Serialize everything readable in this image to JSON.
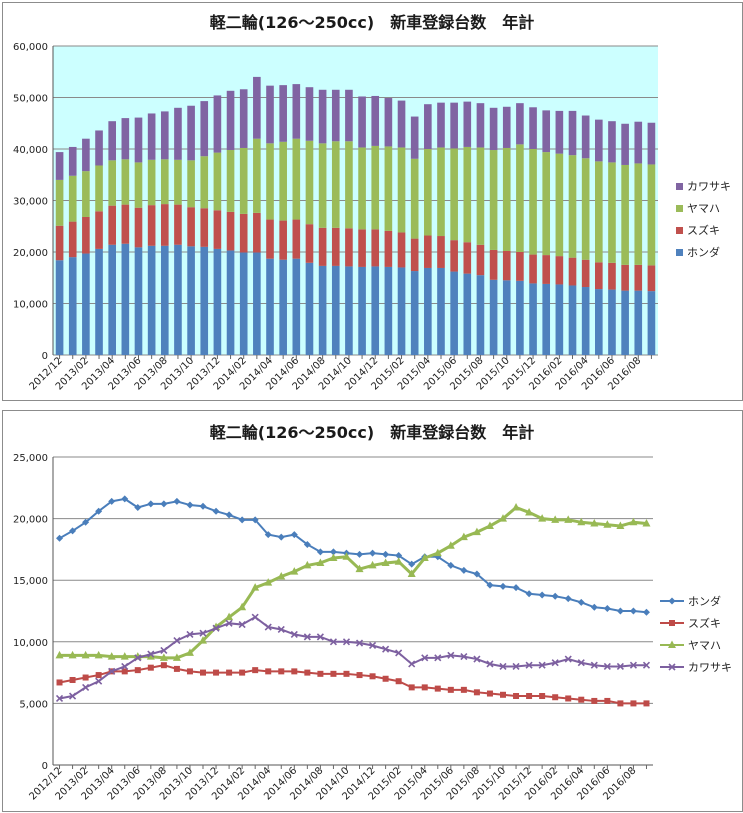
{
  "chart_data": [
    {
      "type": "bar",
      "stacked": true,
      "title": "軽二輪(126～250cc)　新車登録台数　年計",
      "categories": [
        "2012/12",
        "2013/01",
        "2013/02",
        "2013/03",
        "2013/04",
        "2013/05",
        "2013/06",
        "2013/07",
        "2013/08",
        "2013/09",
        "2013/10",
        "2013/11",
        "2013/12",
        "2014/01",
        "2014/02",
        "2014/03",
        "2014/04",
        "2014/05",
        "2014/06",
        "2014/07",
        "2014/08",
        "2014/09",
        "2014/10",
        "2014/11",
        "2014/12",
        "2015/01",
        "2015/02",
        "2015/03",
        "2015/04",
        "2015/05",
        "2015/06",
        "2015/07",
        "2015/08",
        "2015/09",
        "2015/10",
        "2015/11",
        "2015/12",
        "2016/01",
        "2016/02",
        "2016/03",
        "2016/04",
        "2016/05",
        "2016/06",
        "2016/07",
        "2016/08",
        "2016/09"
      ],
      "x_tick_labels": [
        "2012/12",
        "2013/02",
        "2013/04",
        "2013/06",
        "2013/08",
        "2013/10",
        "2013/12",
        "2014/02",
        "2014/04",
        "2014/06",
        "2014/08",
        "2014/10",
        "2014/12",
        "2015/02",
        "2015/04",
        "2015/06",
        "2015/08",
        "2015/10",
        "2015/12",
        "2016/02",
        "2016/04",
        "2016/06",
        "2016/08"
      ],
      "ylim": [
        0,
        60000
      ],
      "yticks": [
        "0",
        "10,000",
        "20,000",
        "30,000",
        "40,000",
        "50,000",
        "60,000"
      ],
      "legend": "right",
      "series": [
        {
          "name": "ホンダ",
          "color": "#4f81bd",
          "values": [
            18400,
            19000,
            19700,
            20600,
            21400,
            21600,
            20900,
            21200,
            21200,
            21400,
            21100,
            21000,
            20600,
            20300,
            19900,
            19900,
            18700,
            18500,
            18700,
            17900,
            17300,
            17300,
            17200,
            17100,
            17200,
            17100,
            17000,
            16300,
            16900,
            16900,
            16200,
            15800,
            15500,
            14600,
            14500,
            14400,
            13900,
            13800,
            13700,
            13500,
            13200,
            12800,
            12700,
            12500,
            12500,
            12400
          ]
        },
        {
          "name": "スズキ",
          "color": "#c0504d",
          "values": [
            6700,
            6900,
            7100,
            7300,
            7600,
            7600,
            7700,
            7900,
            8100,
            7800,
            7600,
            7500,
            7500,
            7500,
            7500,
            7700,
            7600,
            7600,
            7600,
            7500,
            7400,
            7400,
            7400,
            7300,
            7200,
            7000,
            6800,
            6300,
            6300,
            6200,
            6100,
            6100,
            5900,
            5800,
            5700,
            5600,
            5600,
            5600,
            5500,
            5400,
            5300,
            5200,
            5200,
            5000,
            5000,
            5000
          ]
        },
        {
          "name": "ヤマハ",
          "color": "#9bbb59",
          "values": [
            8900,
            8900,
            8900,
            8900,
            8800,
            8800,
            8800,
            8800,
            8700,
            8700,
            9100,
            10100,
            11200,
            12000,
            12800,
            14400,
            14800,
            15300,
            15700,
            16200,
            16400,
            16800,
            16900,
            15900,
            16200,
            16400,
            16500,
            15500,
            16800,
            17200,
            17800,
            18500,
            18900,
            19400,
            20000,
            20900,
            20500,
            20000,
            19900,
            19900,
            19700,
            19600,
            19500,
            19400,
            19700,
            19600
          ]
        },
        {
          "name": "カワサキ",
          "color": "#8064a2",
          "values": [
            5400,
            5600,
            6300,
            6800,
            7600,
            8000,
            8700,
            9000,
            9300,
            10100,
            10600,
            10700,
            11100,
            11500,
            11400,
            12000,
            11200,
            11000,
            10600,
            10400,
            10400,
            10000,
            10000,
            9900,
            9700,
            9400,
            9100,
            8200,
            8700,
            8700,
            8900,
            8800,
            8600,
            8200,
            8000,
            8000,
            8100,
            8100,
            8300,
            8600,
            8300,
            8100,
            8000,
            8000,
            8100,
            8100
          ]
        }
      ]
    },
    {
      "type": "line",
      "title": "軽二輪(126～250cc)　新車登録台数　年計",
      "ylim": [
        0,
        25000
      ],
      "yticks": [
        "0",
        "5,000",
        "10,000",
        "15,000",
        "20,000",
        "25,000"
      ],
      "legend": "right",
      "series_ref": "same as chart 1"
    }
  ]
}
